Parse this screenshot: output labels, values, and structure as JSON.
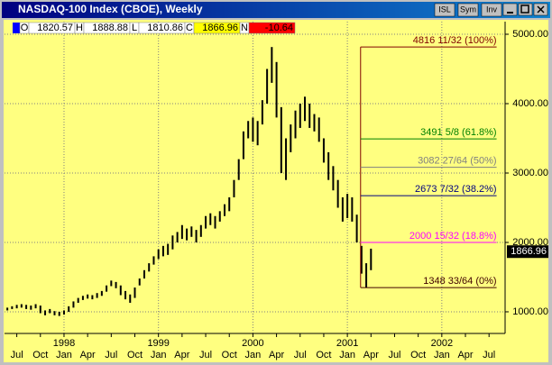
{
  "window": {
    "title": "NASDAQ-100 Index (CBOE), Weekly",
    "buttons": [
      "ISL",
      "Sym",
      "Inv"
    ]
  },
  "quote": {
    "labels": [
      "O",
      "H",
      "L",
      "C",
      "N"
    ],
    "values": [
      1820.57,
      1888.88,
      1810.86,
      1866.96,
      -10.64
    ]
  },
  "chart_data": {
    "type": "ohlc",
    "color": "#000000",
    "background": "#ffff80",
    "x": [
      1997.4,
      1997.45,
      1997.5,
      1997.55,
      1997.6,
      1997.65,
      1997.7,
      1997.75,
      1997.8,
      1997.85,
      1997.9,
      1997.95,
      1998.0,
      1998.05,
      1998.1,
      1998.15,
      1998.2,
      1998.25,
      1998.3,
      1998.35,
      1998.4,
      1998.45,
      1998.5,
      1998.55,
      1998.6,
      1998.65,
      1998.7,
      1998.75,
      1998.8,
      1998.85,
      1998.9,
      1998.95,
      1999.0,
      1999.05,
      1999.1,
      1999.15,
      1999.2,
      1999.25,
      1999.3,
      1999.35,
      1999.4,
      1999.45,
      1999.5,
      1999.55,
      1999.6,
      1999.65,
      1999.7,
      1999.75,
      1999.8,
      1999.85,
      1999.9,
      1999.95,
      2000.0,
      2000.05,
      2000.1,
      2000.15,
      2000.2,
      2000.25,
      2000.3,
      2000.35,
      2000.4,
      2000.45,
      2000.5,
      2000.55,
      2000.6,
      2000.65,
      2000.7,
      2000.75,
      2000.8,
      2000.85,
      2000.9,
      2000.95,
      2001.0,
      2001.05,
      2001.1,
      2001.15,
      2001.2,
      2001.25
    ],
    "high": [
      1060,
      1080,
      1100,
      1110,
      1100,
      1090,
      1110,
      1090,
      1020,
      1040,
      1010,
      1000,
      1020,
      1080,
      1150,
      1200,
      1230,
      1250,
      1240,
      1270,
      1300,
      1380,
      1450,
      1430,
      1380,
      1300,
      1250,
      1350,
      1480,
      1600,
      1700,
      1800,
      1900,
      1950,
      1980,
      2100,
      2150,
      2250,
      2200,
      2230,
      2180,
      2250,
      2380,
      2420,
      2380,
      2450,
      2550,
      2650,
      2900,
      3200,
      3600,
      3750,
      3800,
      3750,
      4050,
      4500,
      4816,
      4600,
      3950,
      3500,
      3700,
      3900,
      4000,
      4100,
      4000,
      3850,
      3800,
      3500,
      3300,
      3100,
      2900,
      2650,
      2700,
      2650,
      2400,
      1950,
      1700,
      1910
    ],
    "low": [
      1020,
      1040,
      1050,
      1060,
      1040,
      1030,
      1050,
      980,
      950,
      980,
      950,
      940,
      960,
      1000,
      1060,
      1130,
      1170,
      1190,
      1180,
      1200,
      1230,
      1290,
      1370,
      1340,
      1240,
      1180,
      1130,
      1200,
      1380,
      1480,
      1580,
      1680,
      1760,
      1800,
      1820,
      1900,
      2000,
      2050,
      2030,
      2080,
      2000,
      2080,
      2200,
      2250,
      2200,
      2300,
      2380,
      2450,
      2650,
      2900,
      3200,
      3500,
      3450,
      3400,
      3700,
      4000,
      4300,
      3800,
      3000,
      2900,
      3300,
      3500,
      3650,
      3750,
      3650,
      3600,
      3450,
      3150,
      2900,
      2750,
      2500,
      2300,
      2350,
      2300,
      2000,
      1550,
      1348,
      1600
    ],
    "xlim": [
      1997.37,
      2002.67
    ],
    "ylim": [
      688,
      5182
    ],
    "xticks": [
      {
        "value": 1997.5,
        "label": "Jul"
      },
      {
        "value": 1997.75,
        "label": "Oct"
      },
      {
        "value": 1998.0,
        "label": "Jan"
      },
      {
        "value": 1998.25,
        "label": "Apr"
      },
      {
        "value": 1998.5,
        "label": "Jul"
      },
      {
        "value": 1998.75,
        "label": "Oct"
      },
      {
        "value": 1999.0,
        "label": "Jan"
      },
      {
        "value": 1999.25,
        "label": "Apr"
      },
      {
        "value": 1999.5,
        "label": "Jul"
      },
      {
        "value": 1999.75,
        "label": "Oct"
      },
      {
        "value": 2000.0,
        "label": "Jan"
      },
      {
        "value": 2000.25,
        "label": "Apr"
      },
      {
        "value": 2000.5,
        "label": "Jul"
      },
      {
        "value": 2000.75,
        "label": "Oct"
      },
      {
        "value": 2001.0,
        "label": "Jan"
      },
      {
        "value": 2001.25,
        "label": "Apr"
      },
      {
        "value": 2001.5,
        "label": "Jul"
      },
      {
        "value": 2001.75,
        "label": "Oct"
      },
      {
        "value": 2002.0,
        "label": "Jan"
      },
      {
        "value": 2002.25,
        "label": "Apr"
      },
      {
        "value": 2002.5,
        "label": "Jul"
      }
    ],
    "year_ticks": [
      1998,
      1999,
      2000,
      2001,
      2002
    ],
    "yticks": [
      {
        "value": 1000,
        "label": "1000.00"
      },
      {
        "value": 2000,
        "label": "2000.00"
      },
      {
        "value": 3000,
        "label": "3000.00"
      },
      {
        "value": 4000,
        "label": "4000.00"
      },
      {
        "value": 5000,
        "label": "5000.00"
      }
    ],
    "grid": true,
    "last_price": 1866.96,
    "fib": {
      "x": 2001.14,
      "x_end": 2002.58,
      "levels": [
        {
          "value": 4816.34375,
          "label": "4816 11/32 (100%)",
          "color": "#800000"
        },
        {
          "value": 3491.625,
          "label": "3491 5/8 (61.8%)",
          "color": "#008000"
        },
        {
          "value": 3082.421875,
          "label": "3082 27/64 (50%)",
          "color": "#808080"
        },
        {
          "value": 2673.21875,
          "label": "2673 7/32 (38.2%)",
          "color": "#000080"
        },
        {
          "value": 2000.46875,
          "label": "2000 15/32 (18.8%)",
          "color": "#ff00ff"
        },
        {
          "value": 1348.515625,
          "label": "1348 33/64 (0%)",
          "color": "#400000"
        }
      ]
    }
  }
}
